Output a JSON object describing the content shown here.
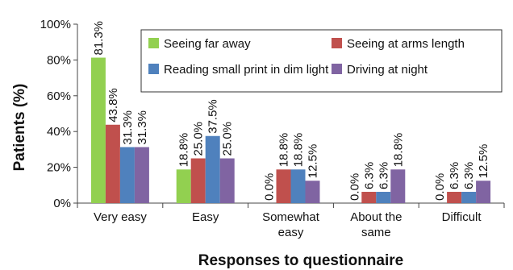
{
  "chart_data": {
    "type": "bar",
    "xlabel": "Responses to questionnaire",
    "ylabel": "Patients (%)",
    "ylim": [
      0,
      100
    ],
    "yticks": [
      0,
      20,
      40,
      60,
      80,
      100
    ],
    "ytick_labels": [
      "0%",
      "20%",
      "40%",
      "60%",
      "80%",
      "100%"
    ],
    "grid": false,
    "legend_position": "top-right",
    "categories": [
      [
        "Very easy"
      ],
      [
        "Easy"
      ],
      [
        "Somewhat",
        "easy"
      ],
      [
        "About the",
        "same"
      ],
      [
        "Difficult"
      ]
    ],
    "series": [
      {
        "name": "Seeing far away",
        "color": "#92d050",
        "values": [
          81.3,
          18.8,
          0.0,
          0.0,
          0.0
        ],
        "labels": [
          "81.3%",
          "18.8%",
          "0.0%",
          "0.0%",
          "0.0%"
        ]
      },
      {
        "name": "Seeing at arms length",
        "color": "#c0504d",
        "values": [
          43.8,
          25.0,
          18.8,
          6.3,
          6.3
        ],
        "labels": [
          "43.8%",
          "25.0%",
          "18.8%",
          "6.3%",
          "6.3%"
        ]
      },
      {
        "name": "Reading small print in dim light",
        "color": "#4f81bd",
        "values": [
          31.3,
          37.5,
          18.8,
          6.3,
          6.3
        ],
        "labels": [
          "31.3%",
          "37.5%",
          "18.8%",
          "6.3%",
          "6.3%"
        ]
      },
      {
        "name": "Driving at night",
        "color": "#8064a2",
        "values": [
          31.3,
          25.0,
          12.5,
          18.8,
          12.5
        ],
        "labels": [
          "31.3%",
          "25.0%",
          "12.5%",
          "18.8%",
          "12.5%"
        ]
      }
    ]
  }
}
